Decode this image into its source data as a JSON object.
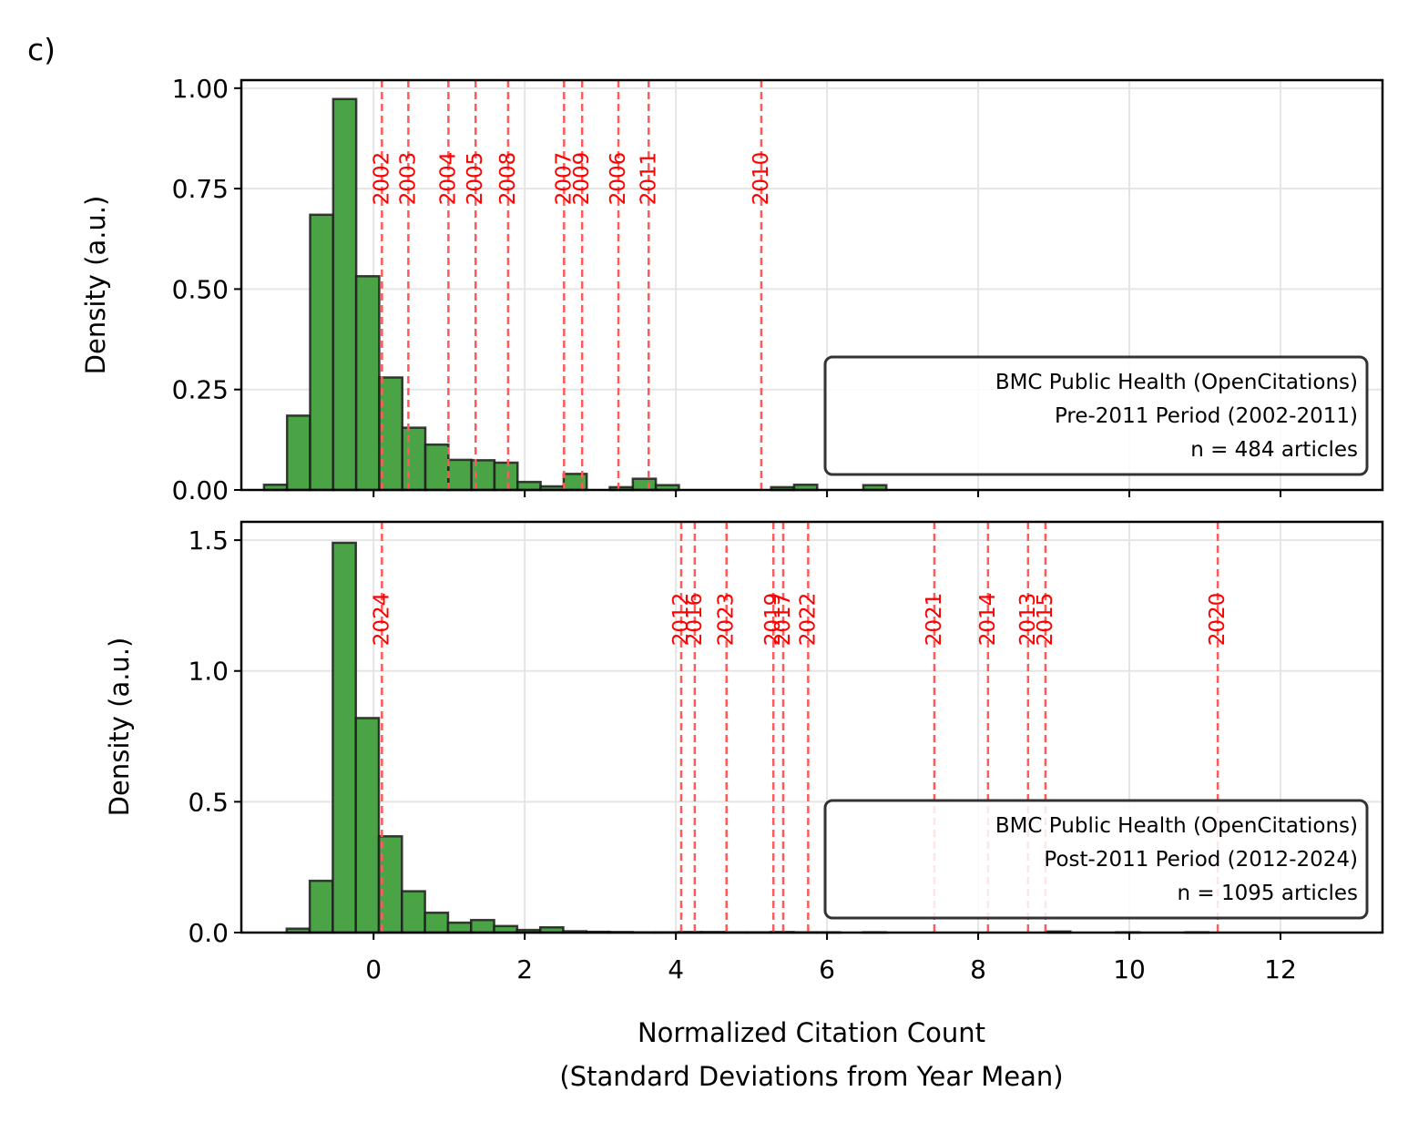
{
  "panel_label": "c)",
  "xlabel_line1": "Normalized Citation Count",
  "xlabel_line2": "(Standard Deviations from Year Mean)",
  "colors": {
    "bar_fill": "#4aa345",
    "bar_edge": "#1d1d1d",
    "vline": "#ff5a5a",
    "year_text": "#ff0000",
    "grid": "#e5e5e5"
  },
  "chart_data": [
    {
      "type": "bar",
      "name": "pre-2011",
      "ylabel": "Density (a.u.)",
      "xlim": [
        -1.75,
        13.35
      ],
      "ylim": [
        0,
        1.02
      ],
      "xticks": [
        0,
        2,
        4,
        6,
        8,
        10,
        12
      ],
      "yticks": [
        0.0,
        0.25,
        0.5,
        0.75,
        1.0
      ],
      "ytick_labels": [
        "0.00",
        "0.25",
        "0.50",
        "0.75",
        "1.00"
      ],
      "bin_start": -1.45,
      "bin_width": 0.305,
      "values": [
        0.013,
        0.185,
        0.685,
        0.973,
        0.532,
        0.28,
        0.155,
        0.113,
        0.075,
        0.074,
        0.068,
        0.02,
        0.009,
        0.04,
        0.0,
        0.007,
        0.028,
        0.012,
        0.0,
        0.0,
        0.0,
        0.0,
        0.007,
        0.013,
        0.0,
        0.0,
        0.012
      ],
      "year_lines": [
        {
          "year": "2002",
          "x": 0.11
        },
        {
          "year": "2003",
          "x": 0.46
        },
        {
          "year": "2004",
          "x": 0.99
        },
        {
          "year": "2005",
          "x": 1.35
        },
        {
          "year": "2008",
          "x": 1.78
        },
        {
          "year": "2007",
          "x": 2.52
        },
        {
          "year": "2009",
          "x": 2.76
        },
        {
          "year": "2006",
          "x": 3.24
        },
        {
          "year": "2011",
          "x": 3.64
        },
        {
          "year": "2010",
          "x": 5.13
        }
      ],
      "legend": {
        "position": "lower-right",
        "lines": [
          "BMC Public Health (OpenCitations)",
          "Pre-2011 Period (2002-2011)",
          "n = 484 articles"
        ]
      }
    },
    {
      "type": "bar",
      "name": "post-2011",
      "ylabel": "Density (a.u.)",
      "xlim": [
        -1.75,
        13.35
      ],
      "ylim": [
        0,
        1.57
      ],
      "xticks": [
        0,
        2,
        4,
        6,
        8,
        10,
        12
      ],
      "xtick_labels": [
        "0",
        "2",
        "4",
        "6",
        "8",
        "10",
        "12"
      ],
      "yticks": [
        0.0,
        0.5,
        1.0,
        1.5
      ],
      "ytick_labels": [
        "0.0",
        "0.5",
        "1.0",
        "1.5"
      ],
      "bin_start": -1.15,
      "bin_width": 0.305,
      "values": [
        0.015,
        0.198,
        1.49,
        0.82,
        0.368,
        0.158,
        0.076,
        0.038,
        0.048,
        0.025,
        0.01,
        0.02,
        0.005,
        0.003,
        0.002,
        0.001,
        0.001,
        0.002,
        0.002,
        0.001,
        0.001,
        0.002,
        0.001,
        0.001,
        0.0,
        0.001,
        0.0,
        0.0,
        0.0,
        0.0,
        0.0,
        0.0,
        0.0,
        0.004,
        0.0,
        0.0,
        0.001,
        0.0,
        0.0,
        0.001,
        0.0,
        0.0,
        0.0,
        0.0,
        0.0,
        0.0,
        0.0,
        0.0,
        0.0,
        0.0,
        0.0,
        0.001,
        0.0,
        0.0,
        0.0,
        0.0,
        0.0,
        0.0,
        0.0,
        0.0,
        0.0,
        0.0,
        0.0,
        0.0,
        0.0,
        0.0,
        0.0,
        0.0,
        0.0,
        0.0,
        0.0,
        0.0,
        0.0,
        0.0,
        0.0,
        0.0,
        0.0,
        0.0,
        0.0,
        0.0,
        0.0,
        0.0,
        0.0,
        0.0,
        0.0,
        0.0,
        0.0,
        0.0,
        0.0,
        0.0,
        0.0,
        0.0,
        0.0,
        0.0,
        0.0,
        0.0,
        0.0,
        0.0,
        0.0,
        0.0,
        0.0,
        0.0,
        0.0,
        0.0,
        0.0,
        0.0,
        0.0,
        0.0,
        0.0,
        0.0,
        0.0,
        0.0,
        0.0,
        0.0,
        0.0,
        0.0,
        0.0,
        0.0,
        0.0,
        0.0,
        0.0,
        0.0,
        0.0,
        0.0,
        0.0,
        0.0,
        0.0,
        0.0,
        0.0,
        0.0,
        0.0,
        0.0,
        0.0,
        0.0,
        0.0,
        0.0,
        0.0,
        0.0,
        0.0,
        0.0,
        0.0,
        0.0,
        0.0,
        0.0,
        0.0,
        0.0,
        0.0,
        0.0
      ],
      "year_lines": [
        {
          "year": "2024",
          "x": 0.11
        },
        {
          "year": "2012",
          "x": 4.07
        },
        {
          "year": "2016",
          "x": 4.25
        },
        {
          "year": "2023",
          "x": 4.67
        },
        {
          "year": "2019",
          "x": 5.29
        },
        {
          "year": "2017",
          "x": 5.42
        },
        {
          "year": "2022",
          "x": 5.75
        },
        {
          "year": "2021",
          "x": 7.42
        },
        {
          "year": "2014",
          "x": 8.13
        },
        {
          "year": "2013",
          "x": 8.66
        },
        {
          "year": "2015",
          "x": 8.89
        },
        {
          "year": "2020",
          "x": 11.17
        }
      ],
      "legend": {
        "position": "lower-right",
        "lines": [
          "BMC Public Health (OpenCitations)",
          "Post-2011 Period (2012-2024)",
          "n = 1095 articles"
        ]
      }
    }
  ]
}
